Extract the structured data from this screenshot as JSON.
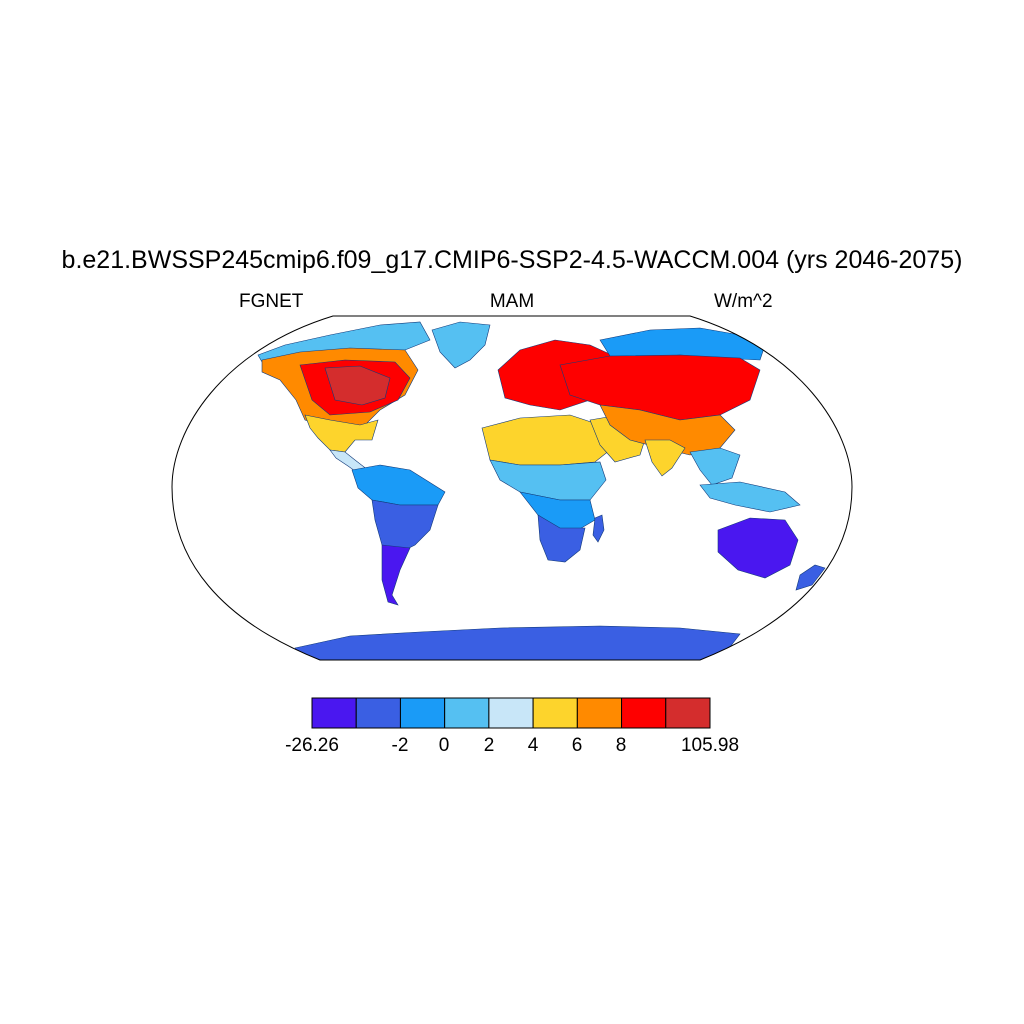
{
  "title": "b.e21.BWSSP245cmip6.f09_g17.CMIP6-SSP2-4.5-WACCM.004 (yrs 2046-2075)",
  "subtitle_left": "FGNET",
  "subtitle_center": "MAM",
  "subtitle_right": "W/m^2",
  "colorbar": {
    "colors": [
      "#4a17f0",
      "#3a5fe3",
      "#1a9bf7",
      "#55c0f2",
      "#c8e6f8",
      "#fdd42c",
      "#ff8a00",
      "#fe0000",
      "#d42d2d"
    ],
    "labels": [
      "-26.26",
      "-2",
      "0",
      "2",
      "4",
      "6",
      "8",
      "105.98"
    ]
  },
  "regions": [
    {
      "name": "north-america-arctic",
      "color": "#55c0f2"
    },
    {
      "name": "north-america-north",
      "color": "#ff8a00"
    },
    {
      "name": "north-america-core",
      "color": "#fe0000"
    },
    {
      "name": "north-america-east",
      "color": "#d42d2d"
    },
    {
      "name": "north-america-south",
      "color": "#fdd42c"
    },
    {
      "name": "central-america",
      "color": "#c8e6f8"
    },
    {
      "name": "greenland",
      "color": "#55c0f2"
    },
    {
      "name": "south-america-north",
      "color": "#1a9bf7"
    },
    {
      "name": "south-america-central",
      "color": "#3a5fe3"
    },
    {
      "name": "south-america-south",
      "color": "#4a17f0"
    },
    {
      "name": "europe",
      "color": "#fe0000"
    },
    {
      "name": "sahara",
      "color": "#fdd42c"
    },
    {
      "name": "africa-sahel",
      "color": "#55c0f2"
    },
    {
      "name": "africa-central",
      "color": "#1a9bf7"
    },
    {
      "name": "africa-south",
      "color": "#3a5fe3"
    },
    {
      "name": "madagascar",
      "color": "#3a5fe3"
    },
    {
      "name": "arabia",
      "color": "#fdd42c"
    },
    {
      "name": "siberia-north",
      "color": "#1a9bf7"
    },
    {
      "name": "asia-core",
      "color": "#fe0000"
    },
    {
      "name": "asia-south",
      "color": "#ff8a00"
    },
    {
      "name": "india",
      "color": "#fdd42c"
    },
    {
      "name": "southeast-asia",
      "color": "#55c0f2"
    },
    {
      "name": "maritime-continent",
      "color": "#55c0f2"
    },
    {
      "name": "australia",
      "color": "#4a17f0"
    },
    {
      "name": "new-zealand",
      "color": "#3a5fe3"
    },
    {
      "name": "antarctica",
      "color": "#3a5fe3"
    }
  ]
}
